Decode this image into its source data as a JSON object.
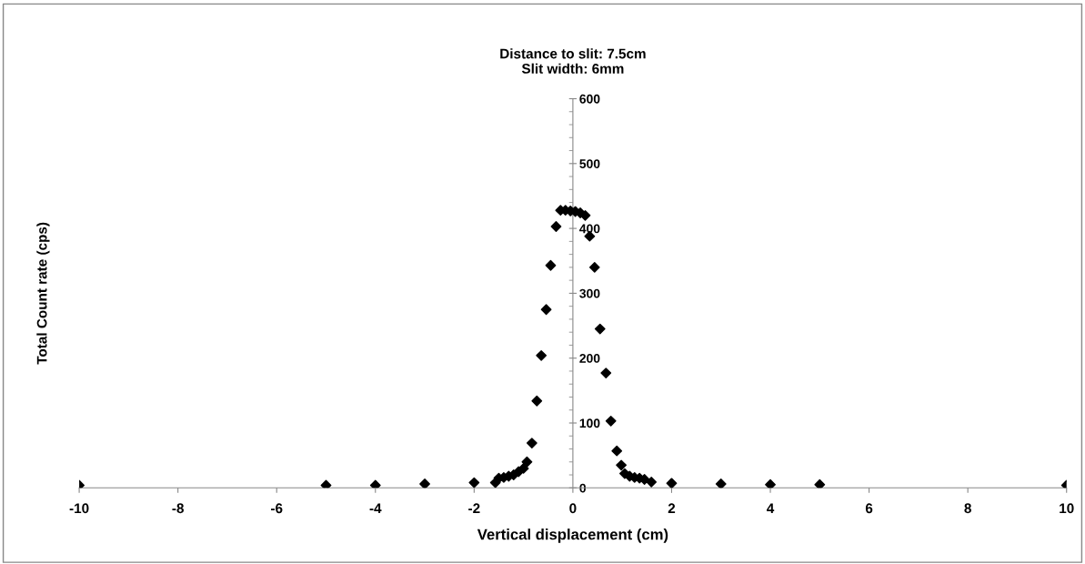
{
  "chart_data": {
    "type": "scatter",
    "title": "Distance to slit: 7.5cm\nSlit width: 6mm",
    "xlabel": "Vertical displacement (cm)",
    "ylabel": "Total Count rate (cps)",
    "x": [
      -10,
      -5,
      -4,
      -3,
      -2,
      -1.57,
      -1.5,
      -1.4,
      -1.3,
      -1.2,
      -1.1,
      -1.0,
      -0.93,
      -0.83,
      -0.73,
      -0.64,
      -0.54,
      -0.45,
      -0.34,
      -0.25,
      -0.15,
      -0.05,
      0.05,
      0.15,
      0.25,
      0.34,
      0.44,
      0.55,
      0.67,
      0.77,
      0.89,
      0.98,
      1.05,
      1.15,
      1.25,
      1.35,
      1.45,
      1.59,
      2,
      3,
      4,
      5,
      10
    ],
    "series": [
      {
        "color": "#000000",
        "values": [
          4,
          4,
          4,
          6,
          8,
          8,
          15,
          16,
          18,
          20,
          25,
          30,
          40,
          69,
          134,
          204,
          275,
          343,
          403,
          428,
          428,
          427,
          426,
          424,
          420,
          388,
          340,
          245,
          177,
          103,
          57,
          35,
          22,
          18,
          16,
          15,
          13,
          9,
          7,
          6,
          5,
          5,
          4
        ]
      }
    ],
    "xlim": [
      -10,
      10
    ],
    "xticks": [
      -10,
      -8,
      -6,
      -4,
      -2,
      0,
      2,
      4,
      6,
      8,
      10
    ],
    "ylim": [
      0,
      600
    ],
    "yticks": [
      0,
      100,
      200,
      300,
      400,
      500,
      600
    ],
    "marker": "diamond",
    "grid": false,
    "legend": false
  }
}
